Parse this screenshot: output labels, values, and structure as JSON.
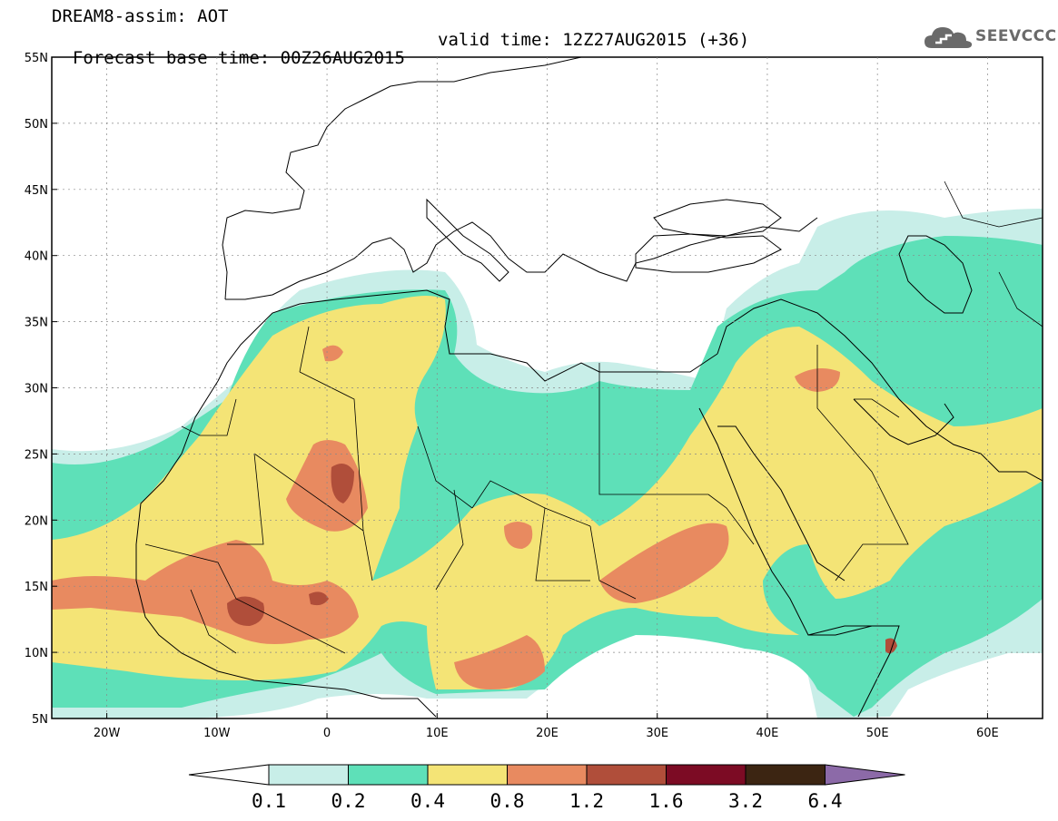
{
  "header": {
    "title": "DREAM8-assim: AOT",
    "base_time": "Forecast base time: 00Z26AUG2015",
    "valid_time": "valid time: 12Z27AUG2015 (+36)",
    "logo": "SEEVCCC"
  },
  "map": {
    "lat_labels": [
      "55N",
      "50N",
      "45N",
      "40N",
      "35N",
      "30N",
      "25N",
      "20N",
      "15N",
      "10N",
      "5N"
    ],
    "lon_labels": [
      "20W",
      "10W",
      "0",
      "10E",
      "20E",
      "30E",
      "40E",
      "50E",
      "60E"
    ],
    "lat_range": [
      5,
      55
    ],
    "lon_range": [
      -25,
      65
    ]
  },
  "colorbar": {
    "labels": [
      "0.1",
      "0.2",
      "0.4",
      "0.8",
      "1.2",
      "1.6",
      "3.2",
      "6.4"
    ],
    "colors": [
      "#ffffff",
      "#c8eee8",
      "#5ee0b8",
      "#f4e476",
      "#e88a60",
      "#b04e3a",
      "#7c0b24",
      "#3c2512",
      "#8c6aa8"
    ]
  }
}
